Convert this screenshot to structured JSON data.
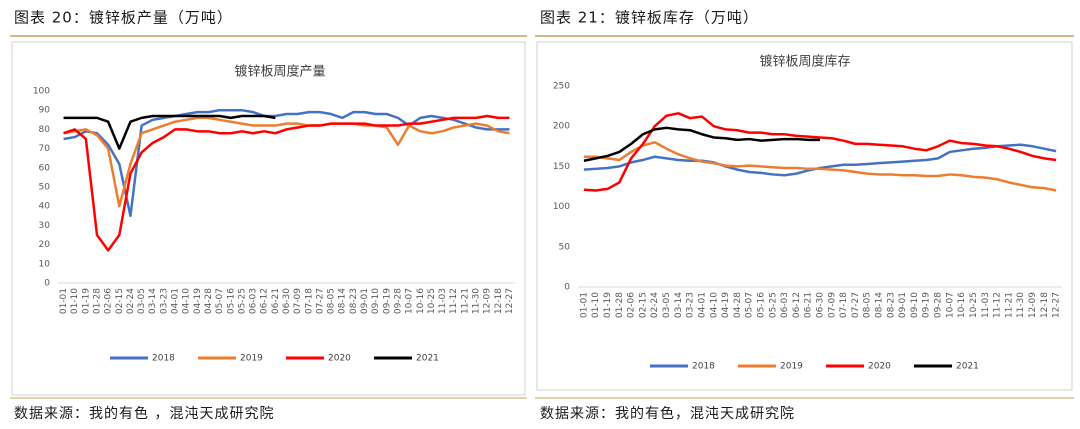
{
  "captions": [
    "图表 20：镀锌板产量（万吨）",
    "图表 21：镀锌板库存（万吨）"
  ],
  "sources": [
    "数据来源：我的有色 ，混沌天成研究院",
    "数据来源：我的有色，混沌天成研究院"
  ],
  "chart_data": [
    {
      "type": "line",
      "title": "镀锌板周度产量",
      "categories": [
        "01-01",
        "01-10",
        "01-19",
        "01-28",
        "02-06",
        "02-15",
        "02-24",
        "03-05",
        "03-14",
        "03-23",
        "04-01",
        "04-10",
        "04-19",
        "04-28",
        "05-07",
        "05-16",
        "05-25",
        "06-03",
        "06-12",
        "06-21",
        "06-30",
        "07-09",
        "07-18",
        "07-27",
        "08-05",
        "08-14",
        "08-23",
        "09-01",
        "09-10",
        "09-19",
        "09-28",
        "10-07",
        "10-16",
        "10-25",
        "11-03",
        "11-12",
        "11-21",
        "11-30",
        "12-09",
        "12-18",
        "12-27"
      ],
      "ylim": [
        0,
        100
      ],
      "yticks": [
        0,
        10,
        20,
        30,
        40,
        50,
        60,
        70,
        80,
        90,
        100
      ],
      "grid": false,
      "series": [
        {
          "name": "2018",
          "color": "#4472c4",
          "values": [
            75,
            76,
            79,
            78,
            72,
            62,
            35,
            82,
            85,
            86,
            87,
            88,
            89,
            89,
            90,
            90,
            90,
            89,
            87,
            87,
            88,
            88,
            89,
            89,
            88,
            86,
            89,
            89,
            88,
            88,
            86,
            82,
            86,
            87,
            86,
            85,
            83,
            81,
            80,
            80,
            80
          ]
        },
        {
          "name": "2019",
          "color": "#ed7d31",
          "values": [
            78,
            79,
            80,
            77,
            70,
            40,
            62,
            78,
            80,
            82,
            84,
            85,
            86,
            86,
            85,
            84,
            83,
            82,
            82,
            82,
            83,
            83,
            82,
            82,
            83,
            83,
            83,
            82,
            82,
            81,
            72,
            82,
            79,
            78,
            79,
            81,
            82,
            83,
            82,
            79,
            78
          ]
        },
        {
          "name": "2020",
          "color": "#ff0000",
          "values": [
            78,
            80,
            75,
            25,
            17,
            25,
            57,
            68,
            73,
            76,
            80,
            80,
            79,
            79,
            78,
            78,
            79,
            78,
            79,
            78,
            80,
            81,
            82,
            82,
            83,
            83,
            83,
            83,
            82,
            82,
            82,
            83,
            83,
            84,
            85,
            86,
            86,
            86,
            87,
            86,
            86
          ]
        },
        {
          "name": "2021",
          "color": "#000000",
          "values": [
            86,
            86,
            86,
            86,
            84,
            70,
            84,
            86,
            87,
            87,
            87,
            87,
            87,
            87,
            87,
            86,
            87,
            87,
            87,
            86,
            null,
            null,
            null,
            null,
            null,
            null,
            null,
            null,
            null,
            null,
            null,
            null,
            null,
            null,
            null,
            null,
            null,
            null,
            null,
            null,
            null
          ]
        }
      ]
    },
    {
      "type": "line",
      "title": "镀锌板周度库存",
      "categories": [
        "01-01",
        "01-10",
        "01-19",
        "01-28",
        "02-06",
        "02-15",
        "02-24",
        "03-05",
        "03-14",
        "03-23",
        "04-01",
        "04-10",
        "04-19",
        "04-28",
        "05-07",
        "05-16",
        "05-25",
        "06-03",
        "06-12",
        "06-21",
        "06-30",
        "07-09",
        "07-18",
        "07-27",
        "08-05",
        "08-14",
        "08-23",
        "09-01",
        "09-10",
        "09-19",
        "09-28",
        "10-07",
        "10-16",
        "10-25",
        "11-03",
        "11-12",
        "11-21",
        "11-30",
        "12-09",
        "12-18",
        "12-27"
      ],
      "ylim": [
        0,
        250
      ],
      "yticks": [
        0,
        50,
        100,
        150,
        200,
        250
      ],
      "grid": false,
      "series": [
        {
          "name": "2018",
          "color": "#4472c4",
          "values": [
            146,
            147,
            148,
            150,
            155,
            158,
            162,
            160,
            158,
            157,
            157,
            155,
            150,
            146,
            143,
            142,
            140,
            139,
            141,
            145,
            148,
            150,
            152,
            152,
            153,
            154,
            155,
            156,
            157,
            158,
            160,
            168,
            170,
            172,
            173,
            175,
            176,
            177,
            175,
            172,
            169
          ]
        },
        {
          "name": "2019",
          "color": "#ed7d31",
          "values": [
            162,
            162,
            160,
            158,
            168,
            176,
            180,
            172,
            165,
            160,
            156,
            154,
            151,
            150,
            151,
            150,
            149,
            148,
            148,
            147,
            147,
            146,
            145,
            143,
            141,
            140,
            140,
            139,
            139,
            138,
            138,
            140,
            139,
            137,
            136,
            134,
            130,
            127,
            124,
            123,
            120
          ]
        },
        {
          "name": "2020",
          "color": "#ff0000",
          "values": [
            121,
            120,
            122,
            130,
            160,
            178,
            200,
            213,
            216,
            210,
            212,
            200,
            196,
            195,
            192,
            192,
            190,
            190,
            188,
            187,
            186,
            185,
            182,
            178,
            178,
            177,
            176,
            175,
            172,
            170,
            175,
            182,
            179,
            178,
            176,
            175,
            172,
            168,
            163,
            160,
            158
          ]
        },
        {
          "name": "2021",
          "color": "#000000",
          "values": [
            157,
            160,
            163,
            168,
            178,
            190,
            196,
            198,
            196,
            195,
            190,
            186,
            185,
            183,
            184,
            182,
            183,
            184,
            184,
            183,
            183,
            null,
            null,
            null,
            null,
            null,
            null,
            null,
            null,
            null,
            null,
            null,
            null,
            null,
            null,
            null,
            null,
            null,
            null,
            null,
            null
          ]
        }
      ]
    }
  ]
}
